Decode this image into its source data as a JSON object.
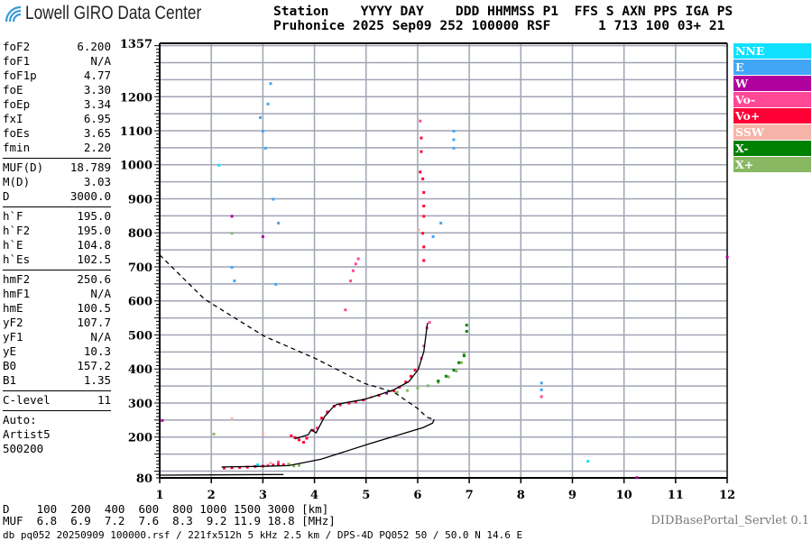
{
  "app": {
    "logo_text": "Lowell GIRO Data Center",
    "servlet": "DIDBasePortal_Servlet 0.1"
  },
  "header": {
    "labels": "Station    YYYY DAY    DDD HHMMSS P1  FFS S AXN PPS IGA PS",
    "values": "Pruhonice 2025 Sep09 252 100000 RSF      1 713 100 03+ 21"
  },
  "params": {
    "group1": [
      [
        "foF2",
        "6.200"
      ],
      [
        "foF1",
        "N/A"
      ],
      [
        "foF1p",
        "4.77"
      ],
      [
        "foE",
        "3.30"
      ],
      [
        "foEp",
        "3.34"
      ],
      [
        "fxI",
        "6.95"
      ],
      [
        "foEs",
        "3.65"
      ],
      [
        "fmin",
        "2.20"
      ]
    ],
    "group2": [
      [
        "MUF(D)",
        "18.789"
      ],
      [
        "M(D)",
        "3.03"
      ],
      [
        "D",
        "3000.0"
      ]
    ],
    "group3": [
      [
        "h`F",
        "195.0"
      ],
      [
        "h`F2",
        "195.0"
      ],
      [
        "h`E",
        "104.8"
      ],
      [
        "h`Es",
        "102.5"
      ]
    ],
    "group4": [
      [
        "hmF2",
        "250.6"
      ],
      [
        "hmF1",
        "N/A"
      ],
      [
        "hmE",
        "100.5"
      ],
      [
        "yF2",
        "107.7"
      ],
      [
        "yF1",
        "N/A"
      ],
      [
        "yE",
        "10.3"
      ],
      [
        "B0",
        "157.2"
      ],
      [
        "B1",
        "1.35"
      ]
    ],
    "group5": [
      [
        "C-level",
        "11"
      ]
    ],
    "auto": [
      "Auto:",
      "Artist5",
      "500200"
    ]
  },
  "legend": [
    {
      "label": "NNE",
      "color": "#10e0ff"
    },
    {
      "label": "E",
      "color": "#42a6f6"
    },
    {
      "label": "W",
      "color": "#b0009e"
    },
    {
      "label": "Vo-",
      "color": "#ff4896"
    },
    {
      "label": "Vo+",
      "color": "#ff0036"
    },
    {
      "label": "SSW",
      "color": "#f6b4a8"
    },
    {
      "label": "X-",
      "color": "#008000"
    },
    {
      "label": "X+",
      "color": "#88b862"
    }
  ],
  "muf_table": {
    "d_label": "D",
    "d_values": [
      "100",
      "200",
      "400",
      "600",
      "800",
      "1000",
      "1500",
      "3000"
    ],
    "d_unit": "[km]",
    "muf_label": "MUF",
    "muf_values": [
      "6.8",
      "6.9",
      "7.2",
      "7.6",
      "8.3",
      "9.2",
      "11.9",
      "18.8"
    ],
    "muf_unit": "[MHz]"
  },
  "footer": "db pq052 20250909 100000.rsf / 221fx512h 5 kHz 2.5 km / DPS-4D PQ052 50 / 50.0 N 14.6 E",
  "chart_data": {
    "type": "scatter",
    "xlim": [
      1,
      12
    ],
    "ylim": [
      80,
      1357
    ],
    "x_ticks": [
      "1",
      "2",
      "3",
      "4",
      "5",
      "6",
      "7",
      "8",
      "9",
      "10",
      "11",
      "12"
    ],
    "y_ticks": [
      "1357",
      "1200",
      "1100",
      "1000",
      "900",
      "800",
      "700",
      "600",
      "500",
      "400",
      "300",
      "200",
      "80"
    ],
    "grid": true,
    "grid_y_step": 50,
    "legend_placement": "right",
    "o_fit_curve": [
      [
        3.62,
        195
      ],
      [
        3.88,
        207
      ],
      [
        3.94,
        222
      ],
      [
        4.03,
        212
      ],
      [
        4.2,
        261
      ],
      [
        4.38,
        291
      ],
      [
        4.44,
        296
      ],
      [
        4.67,
        303
      ],
      [
        4.95,
        310
      ],
      [
        5.25,
        324
      ],
      [
        5.54,
        339
      ],
      [
        5.83,
        363
      ],
      [
        6.01,
        398
      ],
      [
        6.12,
        451
      ],
      [
        6.19,
        535
      ]
    ],
    "profile_curve": [
      [
        2.2,
        112
      ],
      [
        3.0,
        114
      ],
      [
        3.5,
        116
      ],
      [
        4.13,
        135
      ],
      [
        5.06,
        180
      ],
      [
        6.11,
        228
      ],
      [
        6.29,
        241
      ],
      [
        6.32,
        252
      ]
    ],
    "profile_base": [
      [
        1.0,
        88
      ],
      [
        3.4,
        90
      ]
    ],
    "muf_dashed_curve": [
      [
        1.0,
        735
      ],
      [
        1.87,
        605
      ],
      [
        3.03,
        496
      ],
      [
        4.03,
        430
      ],
      [
        4.96,
        358
      ],
      [
        5.54,
        332
      ],
      [
        6.0,
        284
      ],
      [
        6.18,
        258
      ],
      [
        6.32,
        252
      ]
    ],
    "points": [
      [
        2.25,
        110,
        "Vo+"
      ],
      [
        2.4,
        111,
        "Vo+"
      ],
      [
        2.55,
        112,
        "Vo+"
      ],
      [
        2.7,
        113,
        "Vo+"
      ],
      [
        2.85,
        115,
        "Vo+"
      ],
      [
        3.0,
        116,
        "Vo+"
      ],
      [
        3.1,
        118,
        "Vo-"
      ],
      [
        3.2,
        119,
        "Vo+"
      ],
      [
        3.3,
        121,
        "Vo+"
      ],
      [
        3.4,
        120,
        "Vo+"
      ],
      [
        3.5,
        122,
        "X+"
      ],
      [
        2.9,
        120,
        "NNE"
      ],
      [
        3.15,
        125,
        "SSW"
      ],
      [
        3.3,
        128,
        "Vo-"
      ],
      [
        3.6,
        116,
        "X+"
      ],
      [
        3.7,
        118,
        "X+"
      ],
      [
        3.55,
        205,
        "Vo+"
      ],
      [
        3.62,
        200,
        "Vo+"
      ],
      [
        3.7,
        193,
        "Vo+"
      ],
      [
        3.79,
        186,
        "Vo+"
      ],
      [
        3.85,
        198,
        "Vo+"
      ],
      [
        3.97,
        221,
        "Vo+"
      ],
      [
        4.05,
        228,
        "Vo-"
      ],
      [
        4.14,
        257,
        "Vo+"
      ],
      [
        4.25,
        275,
        "Vo+"
      ],
      [
        4.38,
        292,
        "Vo+"
      ],
      [
        4.5,
        296,
        "Vo+"
      ],
      [
        4.67,
        301,
        "Vo+"
      ],
      [
        4.8,
        305,
        "Vo+"
      ],
      [
        4.95,
        310,
        "Vo+"
      ],
      [
        5.1,
        318,
        "SSW"
      ],
      [
        5.25,
        324,
        "Vo+"
      ],
      [
        5.4,
        330,
        "W"
      ],
      [
        5.54,
        337,
        "Vo+"
      ],
      [
        5.65,
        348,
        "Vo+"
      ],
      [
        5.77,
        363,
        "Vo+"
      ],
      [
        5.87,
        380,
        "Vo+"
      ],
      [
        5.95,
        398,
        "Vo+"
      ],
      [
        6.07,
        433,
        "Vo-"
      ],
      [
        6.12,
        469,
        "Vo-"
      ],
      [
        6.18,
        522,
        "Vo-"
      ],
      [
        6.23,
        538,
        "Vo-"
      ],
      [
        5.6,
        333,
        "X+"
      ],
      [
        5.8,
        338,
        "X+"
      ],
      [
        6.0,
        345,
        "X+"
      ],
      [
        6.2,
        352,
        "X+"
      ],
      [
        6.4,
        362,
        "X+"
      ],
      [
        6.6,
        378,
        "X+"
      ],
      [
        6.75,
        395,
        "X+"
      ],
      [
        6.85,
        420,
        "X+"
      ],
      [
        6.9,
        445,
        "X+"
      ],
      [
        6.4,
        366,
        "X-"
      ],
      [
        6.55,
        380,
        "X-"
      ],
      [
        6.7,
        398,
        "X-"
      ],
      [
        6.8,
        420,
        "X-"
      ],
      [
        6.9,
        440,
        "X-"
      ],
      [
        6.95,
        512,
        "X-"
      ],
      [
        6.95,
        530,
        "X-"
      ],
      [
        6.12,
        720,
        "Vo+"
      ],
      [
        6.12,
        760,
        "Vo+"
      ],
      [
        6.1,
        800,
        "Vo+"
      ],
      [
        6.12,
        850,
        "Vo+"
      ],
      [
        6.12,
        880,
        "Vo+"
      ],
      [
        6.12,
        920,
        "Vo+"
      ],
      [
        6.1,
        960,
        "Vo+"
      ],
      [
        6.05,
        980,
        "Vo+"
      ],
      [
        6.07,
        1040,
        "Vo+"
      ],
      [
        6.07,
        1080,
        "Vo+"
      ],
      [
        6.05,
        1130,
        "Vo-"
      ],
      [
        6.02,
        810,
        "SSW"
      ],
      [
        6.3,
        790,
        "E"
      ],
      [
        6.45,
        830,
        "E"
      ],
      [
        6.7,
        1050,
        "E"
      ],
      [
        6.7,
        1075,
        "E"
      ],
      [
        6.7,
        1100,
        "E"
      ],
      [
        4.7,
        660,
        "Vo-"
      ],
      [
        4.75,
        690,
        "Vo-"
      ],
      [
        4.8,
        710,
        "Vo-"
      ],
      [
        4.85,
        725,
        "Vo-"
      ],
      [
        4.6,
        575,
        "Vo-"
      ],
      [
        2.15,
        1000,
        "NNE"
      ],
      [
        2.4,
        850,
        "W"
      ],
      [
        2.4,
        800,
        "X+"
      ],
      [
        2.4,
        700,
        "E"
      ],
      [
        2.45,
        660,
        "E"
      ],
      [
        3.0,
        790,
        "W"
      ],
      [
        3.0,
        1100,
        "E"
      ],
      [
        3.05,
        1050,
        "E"
      ],
      [
        3.1,
        1180,
        "E"
      ],
      [
        3.15,
        1240,
        "E"
      ],
      [
        2.95,
        1140,
        "E"
      ],
      [
        3.2,
        900,
        "E"
      ],
      [
        3.3,
        830,
        "E"
      ],
      [
        3.25,
        650,
        "E"
      ],
      [
        8.4,
        320,
        "Vo-"
      ],
      [
        8.4,
        340,
        "E"
      ],
      [
        8.4,
        360,
        "E"
      ],
      [
        9.3,
        130,
        "NNE"
      ],
      [
        10.25,
        82,
        "W"
      ],
      [
        12.0,
        730,
        "W"
      ],
      [
        1.05,
        250,
        "W"
      ],
      [
        2.05,
        210,
        "X+"
      ],
      [
        2.4,
        255,
        "SSW"
      ],
      [
        3.0,
        210,
        "SSW"
      ]
    ]
  }
}
